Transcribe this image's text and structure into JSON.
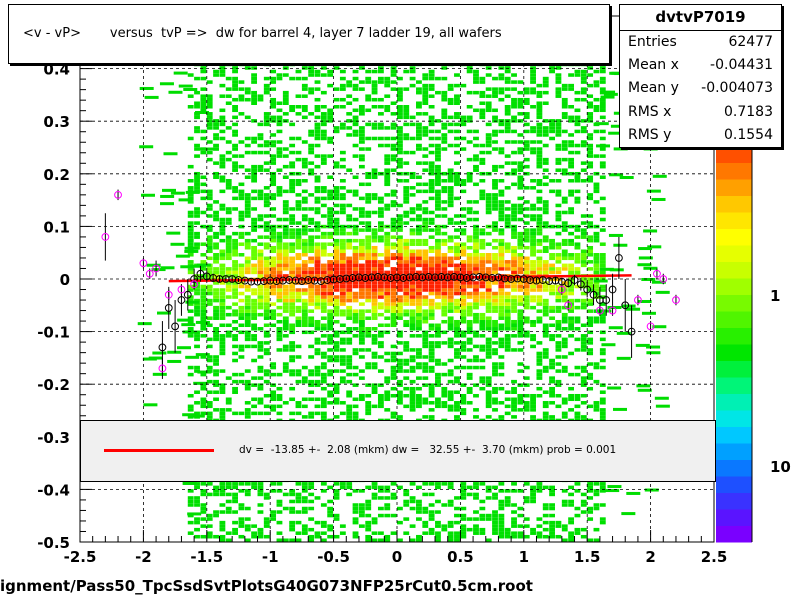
{
  "title": "<v - vP>       versus  tvP =>  dw for barrel 4, layer 7 ladder 19, all wafers",
  "stats": {
    "name": "dvtvP7019",
    "rows": [
      {
        "label": "Entries",
        "value": "62477"
      },
      {
        "label": "Mean x",
        "value": "-0.04431"
      },
      {
        "label": "Mean y",
        "value": "-0.004073"
      },
      {
        "label": "RMS x",
        "value": "0.7183"
      },
      {
        "label": "RMS y",
        "value": "0.1554"
      }
    ]
  },
  "legend": {
    "text": "dv =  -13.85 +-  2.08 (mkm) dw =   32.55 +-  3.70 (mkm) prob = 0.001",
    "line_color": "#ff0000"
  },
  "file_label": "ignment/Pass50_TpcSsdSvtPlotsG40G073NFP25rCut0.5cm.root",
  "chart_data": {
    "type": "heatmap",
    "xlim": [
      -2.5,
      2.5
    ],
    "ylim": [
      -0.5,
      0.5
    ],
    "x_ticks": [
      "-2.5",
      "-2",
      "-1.5",
      "-1",
      "-0.5",
      "0",
      "0.5",
      "1",
      "1.5",
      "2",
      "2.5"
    ],
    "y_ticks": [
      "-0.5",
      "-0.4",
      "-0.3",
      "-0.2",
      "-0.1",
      "0",
      "0.1",
      "0.2",
      "0.3",
      "0.4",
      "0.5"
    ],
    "grid": true,
    "log_z": true,
    "z_ticks": [
      "1",
      "10"
    ],
    "colors": {
      "low": "#00ff00",
      "mid": "#ffff00",
      "high": "#ff3300",
      "fit": "#ff0000",
      "profile_black": "#000000",
      "profile_magenta": "#ff00ff"
    },
    "fit_line": {
      "x": [
        -1.8,
        1.85
      ],
      "y": [
        -0.004,
        0.007
      ]
    },
    "profile_black": [
      {
        "x": -1.85,
        "y": -0.13,
        "err": 0.05
      },
      {
        "x": -1.8,
        "y": -0.055,
        "err": 0.04
      },
      {
        "x": -1.75,
        "y": -0.09,
        "err": 0.05
      },
      {
        "x": -1.7,
        "y": -0.04,
        "err": 0.03
      },
      {
        "x": -1.65,
        "y": -0.03,
        "err": 0.03
      },
      {
        "x": -1.6,
        "y": 0.0,
        "err": 0.02
      },
      {
        "x": -1.55,
        "y": 0.01,
        "err": 0.015
      },
      {
        "x": -1.5,
        "y": 0.005,
        "err": 0.01
      },
      {
        "x": -1.45,
        "y": 0.002,
        "err": 0.008
      },
      {
        "x": -1.4,
        "y": 0.0,
        "err": 0.006
      },
      {
        "x": -1.35,
        "y": 0.0,
        "err": 0.005
      },
      {
        "x": -1.3,
        "y": 0.0,
        "err": 0.005
      },
      {
        "x": -1.25,
        "y": -0.002,
        "err": 0.004
      },
      {
        "x": -1.2,
        "y": -0.003,
        "err": 0.004
      },
      {
        "x": -1.15,
        "y": -0.005,
        "err": 0.004
      },
      {
        "x": -1.1,
        "y": -0.005,
        "err": 0.004
      },
      {
        "x": -1.05,
        "y": -0.004,
        "err": 0.004
      },
      {
        "x": -1.0,
        "y": -0.003,
        "err": 0.004
      },
      {
        "x": -0.95,
        "y": -0.004,
        "err": 0.004
      },
      {
        "x": -0.9,
        "y": -0.003,
        "err": 0.004
      },
      {
        "x": -0.85,
        "y": -0.002,
        "err": 0.004
      },
      {
        "x": -0.8,
        "y": -0.003,
        "err": 0.004
      },
      {
        "x": -0.75,
        "y": -0.004,
        "err": 0.004
      },
      {
        "x": -0.7,
        "y": -0.002,
        "err": 0.004
      },
      {
        "x": -0.65,
        "y": -0.003,
        "err": 0.004
      },
      {
        "x": -0.6,
        "y": -0.004,
        "err": 0.004
      },
      {
        "x": -0.55,
        "y": -0.002,
        "err": 0.004
      },
      {
        "x": -0.5,
        "y": -0.001,
        "err": 0.004
      },
      {
        "x": -0.45,
        "y": 0.0,
        "err": 0.004
      },
      {
        "x": -0.4,
        "y": 0.001,
        "err": 0.004
      },
      {
        "x": -0.35,
        "y": 0.002,
        "err": 0.004
      },
      {
        "x": -0.3,
        "y": 0.003,
        "err": 0.004
      },
      {
        "x": -0.25,
        "y": 0.002,
        "err": 0.004
      },
      {
        "x": -0.2,
        "y": 0.003,
        "err": 0.004
      },
      {
        "x": -0.15,
        "y": 0.004,
        "err": 0.004
      },
      {
        "x": -0.1,
        "y": 0.003,
        "err": 0.004
      },
      {
        "x": -0.05,
        "y": 0.002,
        "err": 0.004
      },
      {
        "x": 0.0,
        "y": 0.003,
        "err": 0.004
      },
      {
        "x": 0.05,
        "y": 0.002,
        "err": 0.004
      },
      {
        "x": 0.1,
        "y": 0.003,
        "err": 0.004
      },
      {
        "x": 0.15,
        "y": 0.004,
        "err": 0.004
      },
      {
        "x": 0.2,
        "y": 0.003,
        "err": 0.004
      },
      {
        "x": 0.25,
        "y": 0.004,
        "err": 0.004
      },
      {
        "x": 0.3,
        "y": 0.003,
        "err": 0.004
      },
      {
        "x": 0.35,
        "y": 0.004,
        "err": 0.004
      },
      {
        "x": 0.4,
        "y": 0.003,
        "err": 0.004
      },
      {
        "x": 0.45,
        "y": 0.004,
        "err": 0.004
      },
      {
        "x": 0.5,
        "y": 0.003,
        "err": 0.004
      },
      {
        "x": 0.55,
        "y": 0.002,
        "err": 0.004
      },
      {
        "x": 0.6,
        "y": 0.003,
        "err": 0.004
      },
      {
        "x": 0.65,
        "y": 0.004,
        "err": 0.004
      },
      {
        "x": 0.7,
        "y": 0.003,
        "err": 0.004
      },
      {
        "x": 0.75,
        "y": 0.002,
        "err": 0.004
      },
      {
        "x": 0.8,
        "y": 0.003,
        "err": 0.004
      },
      {
        "x": 0.85,
        "y": 0.001,
        "err": 0.004
      },
      {
        "x": 0.9,
        "y": 0.0,
        "err": 0.004
      },
      {
        "x": 0.95,
        "y": 0.001,
        "err": 0.004
      },
      {
        "x": 1.0,
        "y": 0.0,
        "err": 0.004
      },
      {
        "x": 1.05,
        "y": -0.002,
        "err": 0.004
      },
      {
        "x": 1.1,
        "y": -0.003,
        "err": 0.005
      },
      {
        "x": 1.15,
        "y": -0.002,
        "err": 0.005
      },
      {
        "x": 1.2,
        "y": -0.004,
        "err": 0.005
      },
      {
        "x": 1.25,
        "y": -0.003,
        "err": 0.006
      },
      {
        "x": 1.3,
        "y": -0.005,
        "err": 0.006
      },
      {
        "x": 1.35,
        "y": -0.008,
        "err": 0.008
      },
      {
        "x": 1.4,
        "y": -0.002,
        "err": 0.01
      },
      {
        "x": 1.45,
        "y": -0.01,
        "err": 0.012
      },
      {
        "x": 1.5,
        "y": -0.02,
        "err": 0.015
      },
      {
        "x": 1.55,
        "y": -0.03,
        "err": 0.02
      },
      {
        "x": 1.6,
        "y": -0.04,
        "err": 0.025
      },
      {
        "x": 1.65,
        "y": -0.04,
        "err": 0.03
      },
      {
        "x": 1.7,
        "y": -0.02,
        "err": 0.03
      },
      {
        "x": 1.75,
        "y": 0.04,
        "err": 0.04
      },
      {
        "x": 1.8,
        "y": -0.05,
        "err": 0.05
      },
      {
        "x": 1.85,
        "y": -0.1,
        "err": 0.05
      }
    ],
    "profile_magenta": [
      {
        "x": -2.3,
        "y": 0.08,
        "err": 0.045
      },
      {
        "x": -2.2,
        "y": 0.16,
        "err": 0.01
      },
      {
        "x": -2.0,
        "y": 0.03,
        "err": 0.01
      },
      {
        "x": -1.95,
        "y": 0.01,
        "err": 0.01
      },
      {
        "x": -1.9,
        "y": 0.02,
        "err": 0.015
      },
      {
        "x": -1.85,
        "y": -0.17,
        "err": 0.02
      },
      {
        "x": -1.8,
        "y": -0.03,
        "err": 0.01
      },
      {
        "x": -1.7,
        "y": -0.02,
        "err": 0.01
      },
      {
        "x": -1.6,
        "y": -0.01,
        "err": 0.01
      },
      {
        "x": 1.3,
        "y": -0.02,
        "err": 0.01
      },
      {
        "x": 1.35,
        "y": -0.05,
        "err": 0.01
      },
      {
        "x": 1.6,
        "y": -0.06,
        "err": 0.01
      },
      {
        "x": 1.7,
        "y": -0.06,
        "err": 0.01
      },
      {
        "x": 1.9,
        "y": -0.04,
        "err": 0.01
      },
      {
        "x": 2.0,
        "y": -0.09,
        "err": 0.01
      },
      {
        "x": 2.05,
        "y": 0.01,
        "err": 0.01
      },
      {
        "x": 2.1,
        "y": 0.0,
        "err": 0.01
      },
      {
        "x": 2.2,
        "y": -0.04,
        "err": 0.01
      }
    ]
  }
}
